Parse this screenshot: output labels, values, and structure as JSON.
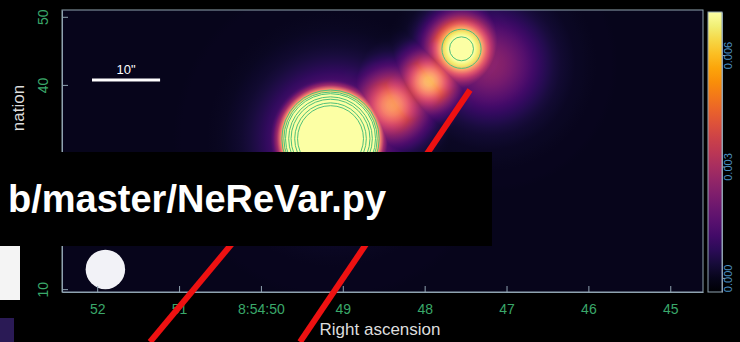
{
  "chart_data": {
    "type": "image",
    "xlabel": "Right ascension",
    "ylabel": "nation",
    "xlim": [
      52.43,
      44.6
    ],
    "xticks": [
      52,
      51,
      {
        "value": 50,
        "label": "8:54:50"
      },
      49,
      48,
      47,
      46,
      45
    ],
    "ylim": [
      9.58,
      51
    ],
    "yticks": [
      10,
      40,
      50
    ],
    "colorbar": {
      "range": [
        -0.00038,
        0.00716
      ],
      "ticks": [
        {
          "value": 0,
          "label": "0.000"
        },
        {
          "value": 0.003,
          "label": "0.003"
        },
        {
          "value": 0.006,
          "label": "0.006"
        }
      ]
    },
    "sources": [
      {
        "x": 49.1,
        "y": 32,
        "peak": 0.0035,
        "size": 6
      },
      {
        "x": 48.4,
        "y": 37,
        "peak": 0.0055,
        "size": 3.5
      },
      {
        "x": 47.95,
        "y": 40.5,
        "peak": 0.006,
        "size": 3
      },
      {
        "x": 47.2,
        "y": 43,
        "peak": 0.0025,
        "size": 5
      },
      {
        "x": 47.55,
        "y": 45.3,
        "peak": 0.0095,
        "size": 3
      },
      {
        "x": 49.15,
        "y": 32.1,
        "peak": 0.2,
        "size": 2.7
      }
    ],
    "contour_levels": [
      0.006,
      0.008,
      0.01,
      0.015,
      0.02,
      0.03,
      0.04
    ],
    "beam": {
      "x": 51.9,
      "y": 12.9,
      "radius": 2.9
    },
    "scale_bar": {
      "label": "10\"",
      "length": 10
    },
    "annotations": [
      "b/master/NeReVar.py"
    ]
  }
}
